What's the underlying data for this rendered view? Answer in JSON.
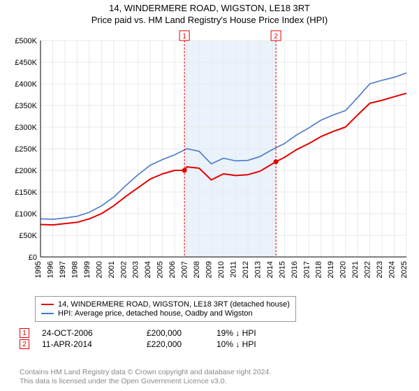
{
  "title_line1": "14, WINDERMERE ROAD, WIGSTON, LE18 3RT",
  "title_line2": "Price paid vs. HM Land Registry's House Price Index (HPI)",
  "chart": {
    "type": "line",
    "xlim": [
      1995,
      2025
    ],
    "ylim": [
      0,
      500000
    ],
    "ytick_step": 50000,
    "ytick_labels": [
      "£0",
      "£50K",
      "£100K",
      "£150K",
      "£200K",
      "£250K",
      "£300K",
      "£350K",
      "£400K",
      "£450K",
      "£500K"
    ],
    "ytick_values": [
      0,
      50000,
      100000,
      150000,
      200000,
      250000,
      300000,
      350000,
      400000,
      450000,
      500000
    ],
    "xtick_values": [
      1995,
      1996,
      1997,
      1998,
      1999,
      2000,
      2001,
      2002,
      2003,
      2004,
      2005,
      2006,
      2007,
      2008,
      2009,
      2010,
      2011,
      2012,
      2013,
      2014,
      2015,
      2016,
      2017,
      2018,
      2019,
      2020,
      2021,
      2022,
      2023,
      2024,
      2025
    ],
    "grid_color": "#e9e9e9",
    "axis_color": "#000000",
    "background_color": "#ffffff",
    "axis_fontsize": 11,
    "shade_band": {
      "x_from": 2006.8,
      "x_to": 2014.3,
      "fill": "#eaf2fb"
    },
    "series": [
      {
        "name": "property",
        "label": "14, WINDERMERE ROAD, WIGSTON, LE18 3RT (detached house)",
        "color": "#e60000",
        "width": 2,
        "points": [
          [
            1995,
            75000
          ],
          [
            1996,
            74000
          ],
          [
            1997,
            77000
          ],
          [
            1998,
            80000
          ],
          [
            1999,
            88000
          ],
          [
            2000,
            100000
          ],
          [
            2001,
            118000
          ],
          [
            2002,
            140000
          ],
          [
            2003,
            160000
          ],
          [
            2004,
            180000
          ],
          [
            2005,
            192000
          ],
          [
            2006,
            200000
          ],
          [
            2006.8,
            200000
          ],
          [
            2007,
            208000
          ],
          [
            2008,
            205000
          ],
          [
            2009,
            178000
          ],
          [
            2010,
            192000
          ],
          [
            2011,
            188000
          ],
          [
            2012,
            190000
          ],
          [
            2013,
            198000
          ],
          [
            2014,
            215000
          ],
          [
            2014.3,
            220000
          ],
          [
            2015,
            230000
          ],
          [
            2016,
            248000
          ],
          [
            2017,
            262000
          ],
          [
            2018,
            278000
          ],
          [
            2019,
            290000
          ],
          [
            2020,
            300000
          ],
          [
            2021,
            328000
          ],
          [
            2022,
            355000
          ],
          [
            2023,
            362000
          ],
          [
            2024,
            370000
          ],
          [
            2025,
            378000
          ]
        ]
      },
      {
        "name": "hpi",
        "label": "HPI: Average price, detached house, Oadby and Wigston",
        "color": "#4878c8",
        "width": 1.6,
        "points": [
          [
            1995,
            88000
          ],
          [
            1996,
            87000
          ],
          [
            1997,
            90000
          ],
          [
            1998,
            94000
          ],
          [
            1999,
            103000
          ],
          [
            2000,
            118000
          ],
          [
            2001,
            138000
          ],
          [
            2002,
            165000
          ],
          [
            2003,
            190000
          ],
          [
            2004,
            212000
          ],
          [
            2005,
            225000
          ],
          [
            2006,
            236000
          ],
          [
            2007,
            250000
          ],
          [
            2008,
            244000
          ],
          [
            2009,
            215000
          ],
          [
            2010,
            228000
          ],
          [
            2011,
            222000
          ],
          [
            2012,
            223000
          ],
          [
            2013,
            232000
          ],
          [
            2014,
            248000
          ],
          [
            2015,
            262000
          ],
          [
            2016,
            282000
          ],
          [
            2017,
            298000
          ],
          [
            2018,
            316000
          ],
          [
            2019,
            328000
          ],
          [
            2020,
            338000
          ],
          [
            2021,
            368000
          ],
          [
            2022,
            400000
          ],
          [
            2023,
            408000
          ],
          [
            2024,
            415000
          ],
          [
            2025,
            425000
          ]
        ]
      }
    ],
    "sale_markers": [
      {
        "n": "1",
        "x": 2006.8,
        "y": 200000,
        "line_color": "#e60000",
        "dash": "3,2"
      },
      {
        "n": "2",
        "x": 2014.3,
        "y": 220000,
        "line_color": "#e60000",
        "dash": "3,2"
      }
    ]
  },
  "legend": {
    "border_color": "#999999"
  },
  "sales_table": {
    "rows": [
      {
        "n": "1",
        "date": "24-OCT-2006",
        "price": "£200,000",
        "hpi": "19% ↓ HPI"
      },
      {
        "n": "2",
        "date": "11-APR-2014",
        "price": "£220,000",
        "hpi": "10% ↓ HPI"
      }
    ],
    "marker_border": "#e60000",
    "marker_text": "#e60000"
  },
  "attribution": {
    "line1": "Contains HM Land Registry data © Crown copyright and database right 2024.",
    "line2": "This data is licensed under the Open Government Licence v3.0."
  }
}
